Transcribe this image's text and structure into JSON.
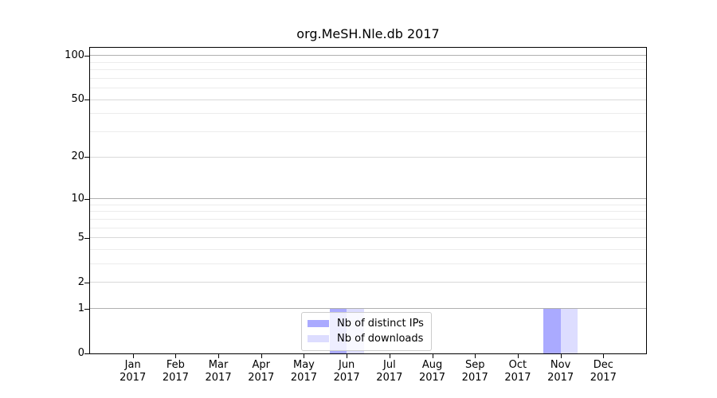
{
  "chart_data": {
    "type": "bar",
    "title": "org.MeSH.Nle.db 2017",
    "year_label": "2017",
    "categories": [
      "Jan",
      "Feb",
      "Mar",
      "Apr",
      "May",
      "Jun",
      "Jul",
      "Aug",
      "Sep",
      "Oct",
      "Nov",
      "Dec"
    ],
    "series": [
      {
        "name": "Nb of distinct IPs",
        "color": "#aaaaff",
        "values": [
          0,
          0,
          0,
          0,
          0,
          1,
          0,
          0,
          0,
          0,
          1,
          0
        ]
      },
      {
        "name": "Nb of downloads",
        "color": "#ddddff",
        "values": [
          0,
          0,
          0,
          0,
          0,
          1,
          0,
          0,
          0,
          0,
          1,
          0
        ]
      }
    ],
    "xlabel": "",
    "ylabel": "",
    "y_axis": {
      "scale": "log1p",
      "min": 0,
      "max": 113,
      "ticks": [
        0,
        1,
        2,
        5,
        10,
        20,
        50,
        100
      ],
      "gridlines": [
        {
          "values": [
            1,
            10,
            100
          ],
          "color": "#b0b0b0"
        },
        {
          "values": [
            2,
            5,
            20,
            50
          ],
          "color": "#d9d9d9"
        },
        {
          "values": [
            3,
            4,
            6,
            7,
            8,
            9,
            30,
            40,
            60,
            70,
            80,
            90
          ],
          "color": "#ececec"
        }
      ]
    },
    "legend": {
      "position": "bottom-center",
      "entries": [
        "Nb of distinct IPs",
        "Nb of downloads"
      ]
    },
    "grid": "on"
  }
}
